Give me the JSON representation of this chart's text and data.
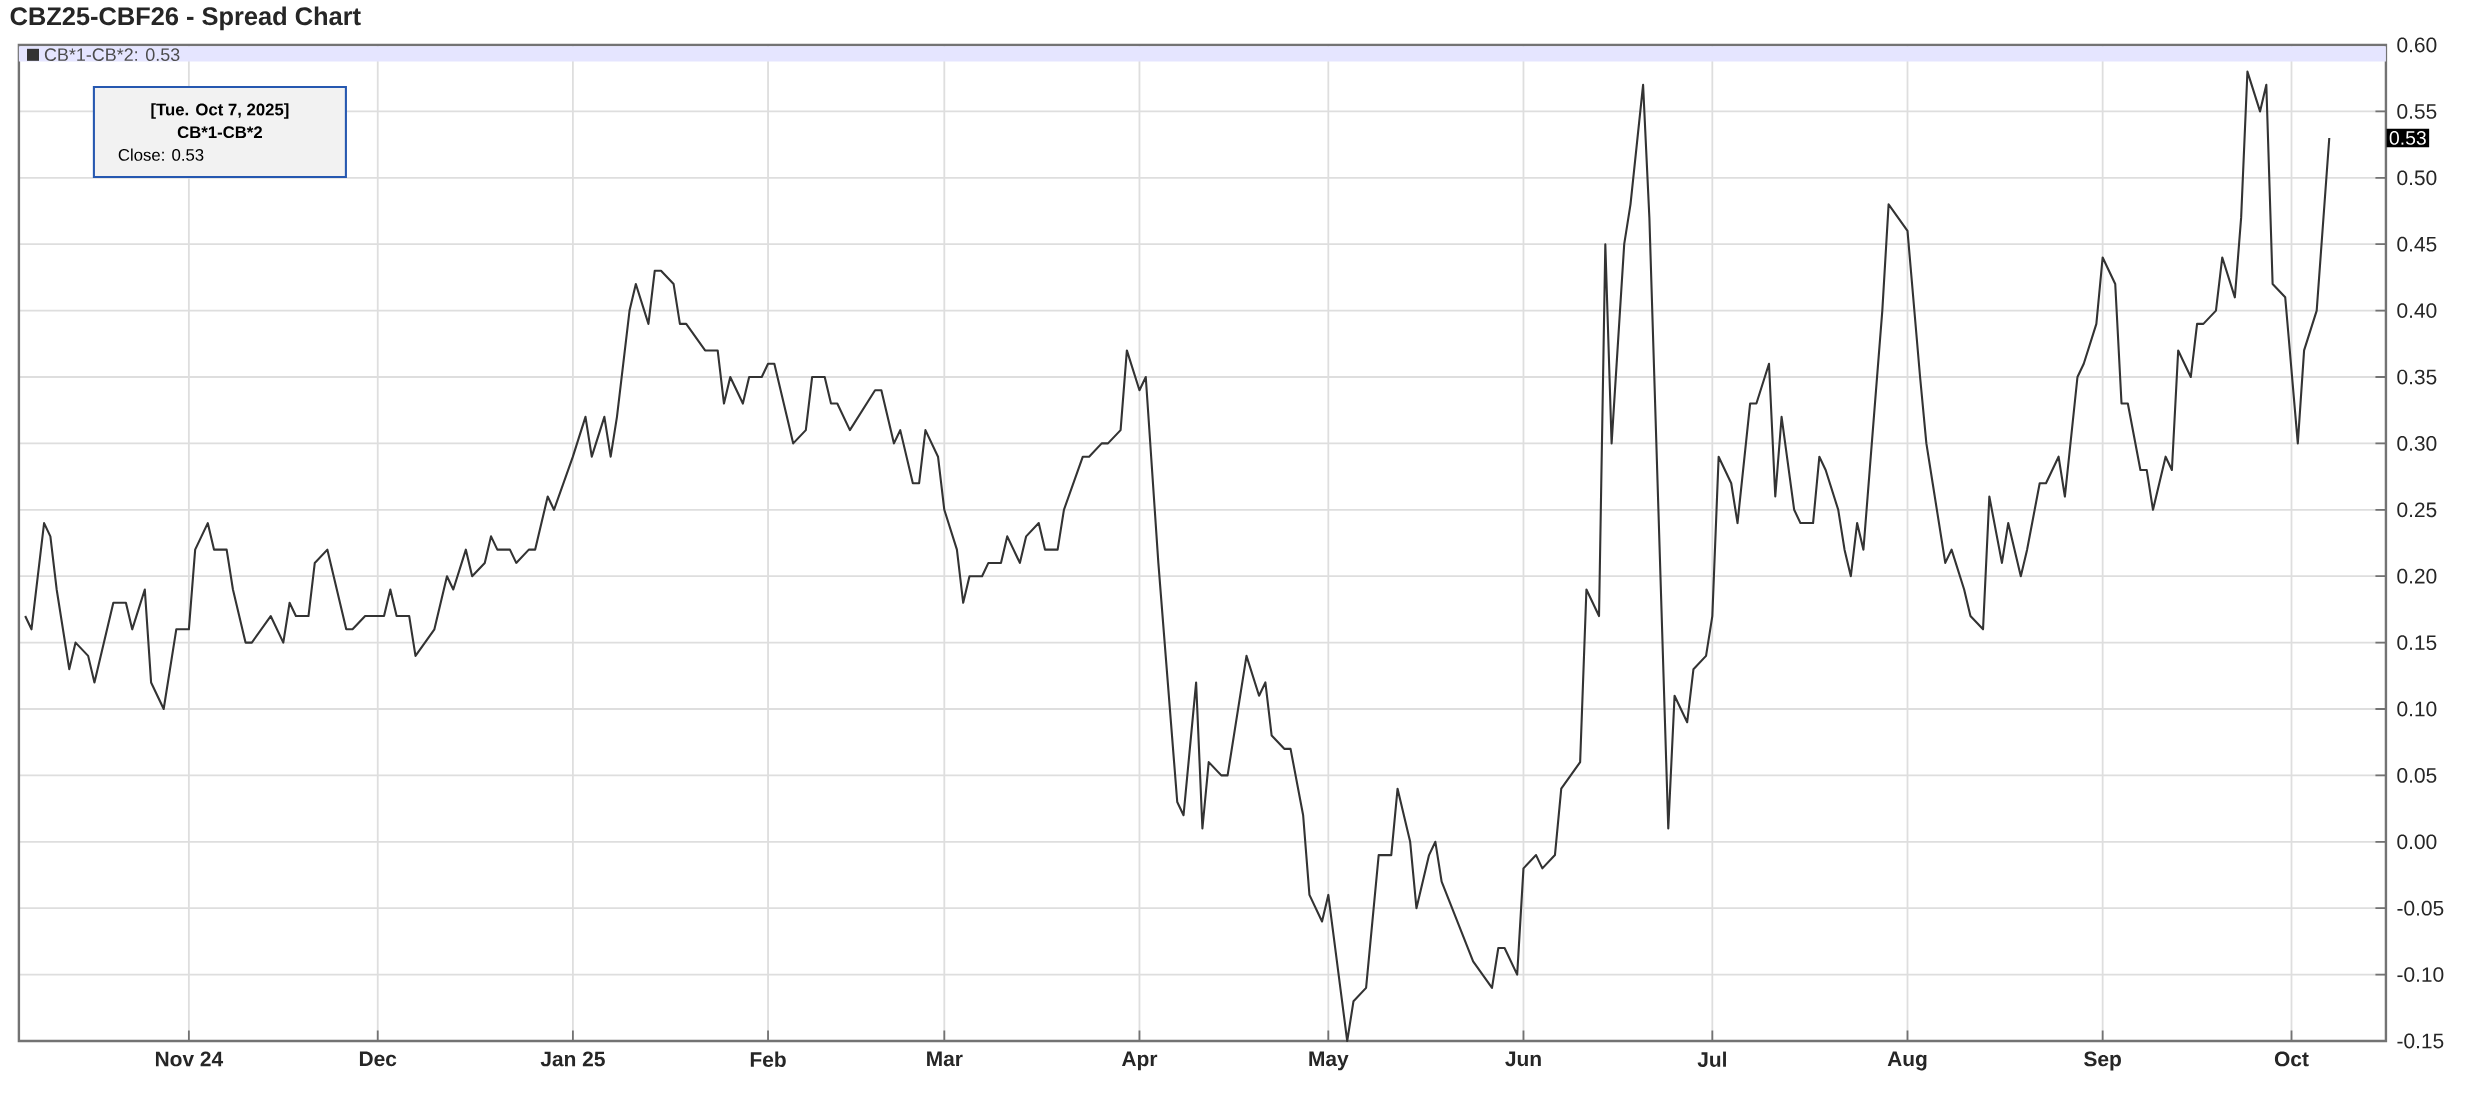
{
  "chart_data": {
    "type": "line",
    "title": "CBZ25-CBF26 - Spread Chart",
    "x": [
      "2024-10-06",
      "2024-10-07",
      "2024-10-09",
      "2024-10-10",
      "2024-10-11",
      "2024-10-13",
      "2024-10-14",
      "2024-10-16",
      "2024-10-17",
      "2024-10-20",
      "2024-10-22",
      "2024-10-23",
      "2024-10-25",
      "2024-10-26",
      "2024-10-28",
      "2024-10-30",
      "2024-11-01",
      "2024-11-02",
      "2024-11-04",
      "2024-11-05",
      "2024-11-07",
      "2024-11-08",
      "2024-11-10",
      "2024-11-11",
      "2024-11-14",
      "2024-11-16",
      "2024-11-17",
      "2024-11-18",
      "2024-11-20",
      "2024-11-21",
      "2024-11-23",
      "2024-11-26",
      "2024-11-27",
      "2024-11-29",
      "2024-12-02",
      "2024-12-03",
      "2024-12-04",
      "2024-12-06",
      "2024-12-07",
      "2024-12-10",
      "2024-12-12",
      "2024-12-13",
      "2024-12-15",
      "2024-12-16",
      "2024-12-18",
      "2024-12-19",
      "2024-12-20",
      "2024-12-22",
      "2024-12-23",
      "2024-12-25",
      "2024-12-26",
      "2024-12-28",
      "2024-12-29",
      "2025-01-01",
      "2025-01-03",
      "2025-01-04",
      "2025-01-06",
      "2025-01-07",
      "2025-01-08",
      "2025-01-10",
      "2025-01-11",
      "2025-01-13",
      "2025-01-14",
      "2025-01-15",
      "2025-01-17",
      "2025-01-18",
      "2025-01-19",
      "2025-01-22",
      "2025-01-24",
      "2025-01-25",
      "2025-01-26",
      "2025-01-28",
      "2025-01-29",
      "2025-01-31",
      "2025-02-01",
      "2025-02-02",
      "2025-02-04",
      "2025-02-05",
      "2025-02-07",
      "2025-02-08",
      "2025-02-10",
      "2025-02-11",
      "2025-02-12",
      "2025-02-14",
      "2025-02-18",
      "2025-02-19",
      "2025-02-21",
      "2025-02-22",
      "2025-02-24",
      "2025-02-25",
      "2025-02-26",
      "2025-02-28",
      "2025-03-01",
      "2025-03-03",
      "2025-03-04",
      "2025-03-05",
      "2025-03-07",
      "2025-03-08",
      "2025-03-10",
      "2025-03-11",
      "2025-03-13",
      "2025-03-14",
      "2025-03-16",
      "2025-03-17",
      "2025-03-19",
      "2025-03-20",
      "2025-03-23",
      "2025-03-24",
      "2025-03-26",
      "2025-03-27",
      "2025-03-29",
      "2025-03-30",
      "2025-04-01",
      "2025-04-02",
      "2025-04-04",
      "2025-04-07",
      "2025-04-08",
      "2025-04-10",
      "2025-04-11",
      "2025-04-12",
      "2025-04-14",
      "2025-04-15",
      "2025-04-18",
      "2025-04-20",
      "2025-04-21",
      "2025-04-22",
      "2025-04-24",
      "2025-04-25",
      "2025-04-27",
      "2025-04-28",
      "2025-04-30",
      "2025-05-01",
      "2025-05-04",
      "2025-05-05",
      "2025-05-07",
      "2025-05-09",
      "2025-05-11",
      "2025-05-12",
      "2025-05-14",
      "2025-05-15",
      "2025-05-17",
      "2025-05-18",
      "2025-05-19",
      "2025-05-24",
      "2025-05-27",
      "2025-05-28",
      "2025-05-29",
      "2025-05-31",
      "2025-06-01",
      "2025-06-03",
      "2025-06-04",
      "2025-06-06",
      "2025-06-07",
      "2025-06-10",
      "2025-06-11",
      "2025-06-13",
      "2025-06-14",
      "2025-06-15",
      "2025-06-17",
      "2025-06-18",
      "2025-06-20",
      "2025-06-21",
      "2025-06-24",
      "2025-06-25",
      "2025-06-27",
      "2025-06-28",
      "2025-06-30",
      "2025-07-01",
      "2025-07-02",
      "2025-07-04",
      "2025-07-05",
      "2025-07-07",
      "2025-07-08",
      "2025-07-10",
      "2025-07-11",
      "2025-07-12",
      "2025-07-14",
      "2025-07-15",
      "2025-07-17",
      "2025-07-18",
      "2025-07-19",
      "2025-07-21",
      "2025-07-22",
      "2025-07-23",
      "2025-07-24",
      "2025-07-25",
      "2025-07-26",
      "2025-07-28",
      "2025-07-29",
      "2025-08-01",
      "2025-08-03",
      "2025-08-04",
      "2025-08-05",
      "2025-08-07",
      "2025-08-08",
      "2025-08-10",
      "2025-08-11",
      "2025-08-13",
      "2025-08-14",
      "2025-08-16",
      "2025-08-17",
      "2025-08-19",
      "2025-08-20",
      "2025-08-22",
      "2025-08-23",
      "2025-08-25",
      "2025-08-26",
      "2025-08-28",
      "2025-08-29",
      "2025-08-31",
      "2025-09-01",
      "2025-09-03",
      "2025-09-04",
      "2025-09-05",
      "2025-09-07",
      "2025-09-08",
      "2025-09-09",
      "2025-09-11",
      "2025-09-12",
      "2025-09-13",
      "2025-09-15",
      "2025-09-16",
      "2025-09-17",
      "2025-09-19",
      "2025-09-20",
      "2025-09-22",
      "2025-09-23",
      "2025-09-24",
      "2025-09-26",
      "2025-09-27",
      "2025-09-28",
      "2025-09-30",
      "2025-10-02",
      "2025-10-03",
      "2025-10-05",
      "2025-10-07"
    ],
    "series": [
      {
        "name": "CB*1-CB*2: 0.53",
        "color": "#333333",
        "values": [
          0.17,
          0.16,
          0.24,
          0.23,
          0.19,
          0.13,
          0.15,
          0.14,
          0.12,
          0.18,
          0.18,
          0.16,
          0.19,
          0.12,
          0.1,
          0.16,
          0.16,
          0.22,
          0.24,
          0.22,
          0.22,
          0.19,
          0.15,
          0.15,
          0.17,
          0.15,
          0.18,
          0.17,
          0.17,
          0.21,
          0.22,
          0.16,
          0.16,
          0.17,
          0.17,
          0.19,
          0.17,
          0.17,
          0.14,
          0.16,
          0.2,
          0.19,
          0.22,
          0.2,
          0.21,
          0.23,
          0.22,
          0.22,
          0.21,
          0.22,
          0.22,
          0.26,
          0.25,
          0.29,
          0.32,
          0.29,
          0.32,
          0.29,
          0.32,
          0.4,
          0.42,
          0.39,
          0.43,
          0.43,
          0.42,
          0.39,
          0.39,
          0.37,
          0.37,
          0.33,
          0.35,
          0.33,
          0.35,
          0.35,
          0.36,
          0.36,
          0.32,
          0.3,
          0.31,
          0.35,
          0.35,
          0.33,
          0.33,
          0.31,
          0.34,
          0.34,
          0.3,
          0.31,
          0.27,
          0.27,
          0.31,
          0.29,
          0.25,
          0.22,
          0.18,
          0.2,
          0.2,
          0.21,
          0.21,
          0.23,
          0.21,
          0.23,
          0.24,
          0.22,
          0.22,
          0.25,
          0.29,
          0.29,
          0.3,
          0.3,
          0.31,
          0.37,
          0.34,
          0.35,
          0.21,
          0.03,
          0.02,
          0.12,
          0.01,
          0.06,
          0.05,
          0.05,
          0.14,
          0.11,
          0.12,
          0.08,
          0.07,
          0.07,
          0.02,
          -0.04,
          -0.06,
          -0.04,
          -0.15,
          -0.12,
          -0.11,
          -0.01,
          -0.01,
          0.04,
          0.0,
          -0.05,
          -0.01,
          0.0,
          -0.03,
          -0.09,
          -0.11,
          -0.08,
          -0.08,
          -0.1,
          -0.02,
          -0.01,
          -0.02,
          -0.01,
          0.04,
          0.06,
          0.19,
          0.17,
          0.45,
          0.3,
          0.45,
          0.48,
          0.57,
          0.47,
          0.01,
          0.11,
          0.09,
          0.13,
          0.14,
          0.17,
          0.29,
          0.27,
          0.24,
          0.33,
          0.33,
          0.36,
          0.26,
          0.32,
          0.25,
          0.24,
          0.24,
          0.29,
          0.28,
          0.25,
          0.22,
          0.2,
          0.24,
          0.22,
          0.28,
          0.4,
          0.48,
          0.46,
          0.35,
          0.3,
          0.27,
          0.21,
          0.22,
          0.19,
          0.17,
          0.16,
          0.26,
          0.21,
          0.24,
          0.2,
          0.22,
          0.27,
          0.27,
          0.29,
          0.26,
          0.35,
          0.36,
          0.39,
          0.44,
          0.42,
          0.33,
          0.33,
          0.28,
          0.28,
          0.25,
          0.29,
          0.28,
          0.37,
          0.35,
          0.39,
          0.39,
          0.4,
          0.44,
          0.41,
          0.47,
          0.58,
          0.55,
          0.57,
          0.42,
          0.41,
          0.3,
          0.37,
          0.4,
          0.53
        ]
      }
    ],
    "xlim": [
      "2024-10-05",
      "2025-10-16"
    ],
    "xticks": [
      {
        "value": "2024-11-01",
        "label": "Nov 24"
      },
      {
        "value": "2024-12-01",
        "label": "Dec"
      },
      {
        "value": "2025-01-01",
        "label": "Jan 25"
      },
      {
        "value": "2025-02-01",
        "label": "Feb"
      },
      {
        "value": "2025-03-01",
        "label": "Mar"
      },
      {
        "value": "2025-04-01",
        "label": "Apr"
      },
      {
        "value": "2025-05-01",
        "label": "May"
      },
      {
        "value": "2025-06-01",
        "label": "Jun"
      },
      {
        "value": "2025-07-01",
        "label": "Jul"
      },
      {
        "value": "2025-08-01",
        "label": "Aug"
      },
      {
        "value": "2025-09-01",
        "label": "Sep"
      },
      {
        "value": "2025-10-01",
        "label": "Oct"
      }
    ],
    "ylim": [
      -0.15,
      0.6
    ],
    "yticks": [
      {
        "value": -0.15,
        "label": "-0.15"
      },
      {
        "value": -0.1,
        "label": "-0.10"
      },
      {
        "value": -0.05,
        "label": "-0.05"
      },
      {
        "value": 0,
        "label": "0.00"
      },
      {
        "value": 0.05,
        "label": "0.05"
      },
      {
        "value": 0.1,
        "label": "0.10"
      },
      {
        "value": 0.15,
        "label": "0.15"
      },
      {
        "value": 0.2,
        "label": "0.20"
      },
      {
        "value": 0.25,
        "label": "0.25"
      },
      {
        "value": 0.3,
        "label": "0.30"
      },
      {
        "value": 0.35,
        "label": "0.35"
      },
      {
        "value": 0.4,
        "label": "0.40"
      },
      {
        "value": 0.45,
        "label": "0.45"
      },
      {
        "value": 0.5,
        "label": "0.50"
      },
      {
        "value": 0.55,
        "label": "0.55"
      },
      {
        "value": 0.6,
        "label": "0.60"
      }
    ],
    "grid": true,
    "legend": "top left",
    "marker": "none",
    "line_style": "solid",
    "annotations": [
      "[Tue. Oct 7, 2025]",
      "CB*1-CB*2",
      "Close: 0.53",
      "0.53"
    ]
  }
}
